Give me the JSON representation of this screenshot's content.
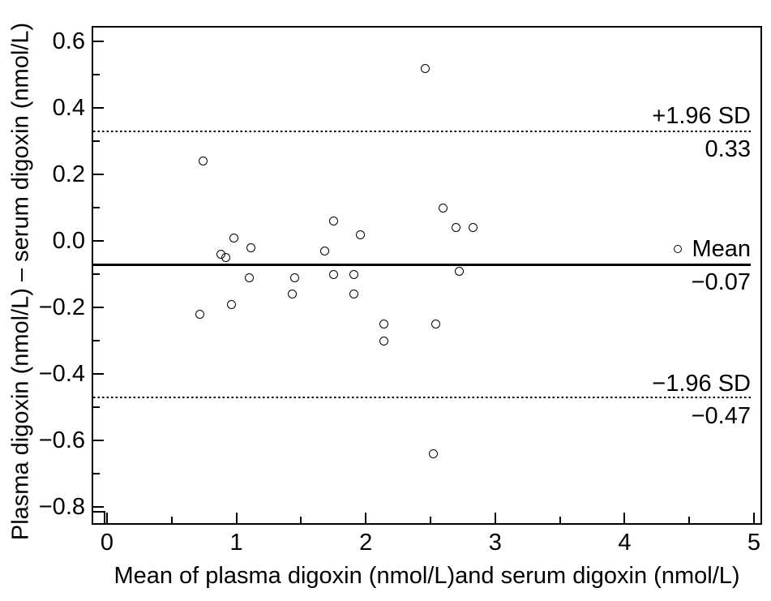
{
  "figure": {
    "background": "#ffffff",
    "ink_color": "#000000"
  },
  "chart_data": {
    "type": "scatter",
    "title": "",
    "xlabel": "Mean of plasma digoxin (nmol/L)and serum digoxin (nmol/L)",
    "ylabel": "Plasma digoxin (nmol/L) – serum digoxin (nmol/L)",
    "xlim": [
      -0.11,
      5.06
    ],
    "ylim": [
      -0.85,
      0.65
    ],
    "grid": false,
    "marker": "open-circle",
    "x_axis": {
      "major_ticks": [
        0,
        1,
        2,
        3,
        4,
        5
      ],
      "major_labels": [
        "0",
        "1",
        "2",
        "3",
        "4",
        "5"
      ],
      "minor_ticks": [
        0.5,
        1.5,
        2.5,
        3.5,
        4.5
      ]
    },
    "y_axis": {
      "major_ticks": [
        0.6,
        0.4,
        0.2,
        0.0,
        -0.2,
        -0.4,
        -0.6,
        -0.8
      ],
      "major_labels": [
        "0.6",
        "0.4",
        "0.2",
        "0.0",
        "−0.2",
        "−0.4",
        "−0.6",
        "−0.8"
      ],
      "minor_ticks": [
        0.5,
        0.3,
        0.1,
        -0.1,
        -0.3,
        -0.5,
        -0.7
      ]
    },
    "reference_lines": [
      {
        "id": "upper-loa",
        "value": 0.33,
        "style": "dotted",
        "label": "+1.96 SD",
        "value_label": "0.33"
      },
      {
        "id": "mean",
        "value": -0.07,
        "style": "solid",
        "label": "Mean",
        "value_label": "−0.07",
        "legend_marker": "open-circle"
      },
      {
        "id": "lower-loa",
        "value": -0.47,
        "style": "dotted",
        "label": "−1.96 SD",
        "value_label": "−0.47"
      }
    ],
    "points": [
      {
        "x": 0.72,
        "y": -0.22
      },
      {
        "x": 0.74,
        "y": 0.24
      },
      {
        "x": 0.88,
        "y": -0.04
      },
      {
        "x": 0.92,
        "y": -0.05
      },
      {
        "x": 0.96,
        "y": -0.19
      },
      {
        "x": 0.98,
        "y": 0.01
      },
      {
        "x": 1.1,
        "y": -0.11
      },
      {
        "x": 1.11,
        "y": -0.02
      },
      {
        "x": 1.43,
        "y": -0.16
      },
      {
        "x": 1.45,
        "y": -0.11
      },
      {
        "x": 1.68,
        "y": -0.03
      },
      {
        "x": 1.75,
        "y": 0.06
      },
      {
        "x": 1.75,
        "y": -0.1
      },
      {
        "x": 1.91,
        "y": -0.1
      },
      {
        "x": 1.91,
        "y": -0.16
      },
      {
        "x": 1.96,
        "y": 0.02
      },
      {
        "x": 2.14,
        "y": -0.25
      },
      {
        "x": 2.14,
        "y": -0.3
      },
      {
        "x": 2.46,
        "y": 0.52
      },
      {
        "x": 2.52,
        "y": -0.64
      },
      {
        "x": 2.54,
        "y": -0.25
      },
      {
        "x": 2.6,
        "y": 0.1
      },
      {
        "x": 2.7,
        "y": 0.04
      },
      {
        "x": 2.72,
        "y": -0.09
      },
      {
        "x": 2.83,
        "y": 0.04
      }
    ]
  }
}
